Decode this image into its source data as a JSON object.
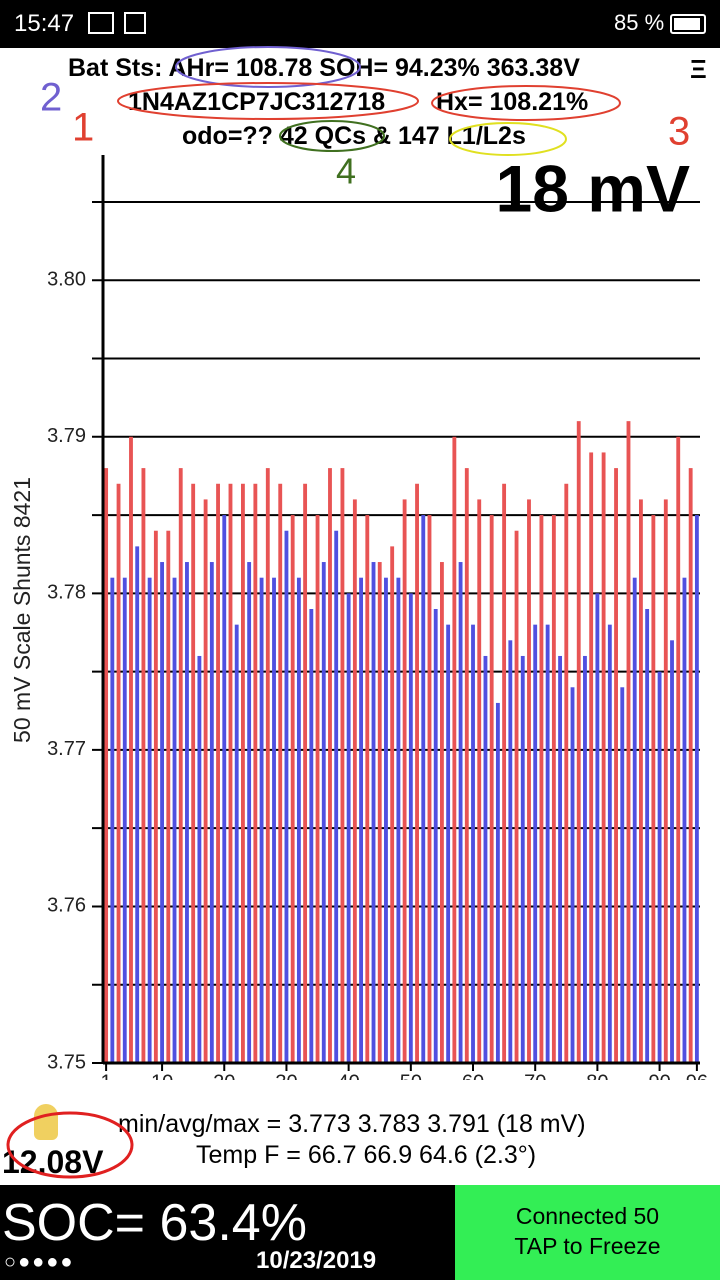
{
  "status_bar": {
    "time": "15:47",
    "battery": "85 %"
  },
  "header": {
    "line1": "Bat Sts: AHr= 108.78 SOH= 94.23% 363.38V",
    "vin": "1N4AZ1CP7JC312718",
    "hx": "Hx= 108.21%",
    "line3": "odo=?? 42 QCs & 147 L1/L2s",
    "menu": "Ξ"
  },
  "notes": [
    "1",
    "2",
    "3",
    "4"
  ],
  "chart_data": {
    "type": "bar",
    "annotation": "18 mV",
    "ylabel": "50 mV Scale  Shunts 8421",
    "ylim": [
      3.75,
      3.808
    ],
    "xlim": [
      0.5,
      96.5
    ],
    "yticks": [
      3.75,
      3.76,
      3.77,
      3.78,
      3.79,
      {
        "value": 3.8,
        "label": "3.80"
      }
    ],
    "minor_yticks": [
      3.755,
      3.765,
      3.775,
      3.785,
      3.795,
      3.805
    ],
    "xticks": [
      1,
      10,
      20,
      30,
      40,
      50,
      60,
      70,
      80,
      90,
      96
    ],
    "grid": true,
    "series": [
      {
        "color": "#e85454",
        "x": [
          1,
          3,
          5,
          7,
          9,
          11,
          13,
          15,
          17,
          19,
          21,
          23,
          25,
          27,
          29,
          31,
          33,
          35,
          37,
          39,
          41,
          43,
          45,
          47,
          49,
          51,
          53,
          55,
          57,
          59,
          61,
          63,
          65,
          67,
          69,
          71,
          73,
          75,
          77,
          79,
          81,
          83,
          85,
          87,
          89,
          91,
          93,
          95
        ],
        "values": [
          3.788,
          3.787,
          3.79,
          3.788,
          3.784,
          3.784,
          3.788,
          3.787,
          3.786,
          3.787,
          3.787,
          3.787,
          3.787,
          3.788,
          3.787,
          3.785,
          3.787,
          3.785,
          3.788,
          3.788,
          3.786,
          3.785,
          3.782,
          3.783,
          3.786,
          3.787,
          3.785,
          3.782,
          3.79,
          3.788,
          3.786,
          3.785,
          3.787,
          3.784,
          3.786,
          3.785,
          3.785,
          3.787,
          3.791,
          3.789,
          3.789,
          3.788,
          3.791,
          3.786,
          3.785,
          3.786,
          3.79,
          3.788
        ]
      },
      {
        "color": "#5050e0",
        "x": [
          2,
          4,
          6,
          8,
          10,
          12,
          14,
          16,
          18,
          20,
          22,
          24,
          26,
          28,
          30,
          32,
          34,
          36,
          38,
          40,
          42,
          44,
          46,
          48,
          50,
          52,
          54,
          56,
          58,
          60,
          62,
          64,
          66,
          68,
          70,
          72,
          74,
          76,
          78,
          80,
          82,
          84,
          86,
          88,
          90,
          92,
          94,
          96
        ],
        "values": [
          3.781,
          3.781,
          3.783,
          3.781,
          3.782,
          3.781,
          3.782,
          3.776,
          3.782,
          3.785,
          3.778,
          3.782,
          3.781,
          3.781,
          3.784,
          3.781,
          3.779,
          3.782,
          3.784,
          3.78,
          3.781,
          3.782,
          3.781,
          3.781,
          3.78,
          3.785,
          3.779,
          3.778,
          3.782,
          3.778,
          3.776,
          3.773,
          3.777,
          3.776,
          3.778,
          3.778,
          3.776,
          3.774,
          3.776,
          3.78,
          3.778,
          3.774,
          3.781,
          3.779,
          3.775,
          3.777,
          3.781,
          3.785
        ]
      }
    ]
  },
  "footer": {
    "stats": "min/avg/max = 3.773 3.783 3.791  (18 mV)",
    "temp": "Temp F = 66.7  66.9  64.6  (2.3°)",
    "aux_voltage": "12.08V",
    "soc": "SOC= 63.4%",
    "date": "10/23/2019",
    "status": "Connected 50",
    "action": "TAP to Freeze"
  }
}
